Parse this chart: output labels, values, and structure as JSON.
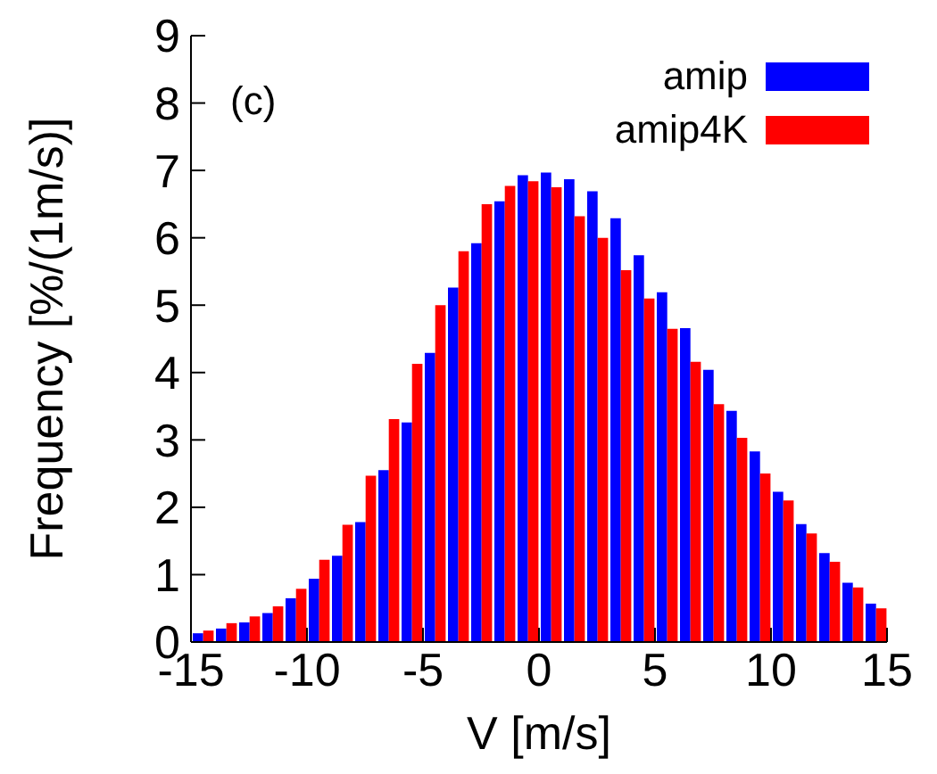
{
  "chart_data": {
    "type": "histogram",
    "xlabel": "V  [m/s]",
    "ylabel": "Frequency  [%/(1m/s)]",
    "annotations": [
      "(c)"
    ],
    "bins": [
      -15,
      -14,
      -13,
      -12,
      -11,
      -10,
      -9,
      -8,
      -7,
      -6,
      -5,
      -4,
      -3,
      -2,
      -1,
      0,
      1,
      2,
      3,
      4,
      5,
      6,
      7,
      8,
      9,
      10,
      11,
      12,
      13,
      14,
      15
    ],
    "series": [
      {
        "name": "amip",
        "color": "#0000ff",
        "values": [
          0.13,
          0.2,
          0.29,
          0.43,
          0.65,
          0.94,
          1.28,
          1.78,
          2.55,
          3.26,
          4.29,
          5.26,
          5.92,
          6.54,
          6.93,
          6.97,
          6.87,
          6.69,
          6.29,
          5.74,
          5.19,
          4.66,
          4.04,
          3.43,
          2.83,
          2.23,
          1.75,
          1.32,
          0.88,
          0.57
        ]
      },
      {
        "name": "amip4K",
        "color": "#ff0000",
        "values": [
          0.17,
          0.28,
          0.38,
          0.53,
          0.79,
          1.22,
          1.74,
          2.47,
          3.31,
          4.13,
          5.0,
          5.8,
          6.5,
          6.77,
          6.84,
          6.75,
          6.32,
          6.0,
          5.52,
          5.1,
          4.65,
          4.16,
          3.53,
          3.03,
          2.5,
          2.1,
          1.61,
          1.19,
          0.81,
          0.5
        ]
      }
    ],
    "xlim": [
      -15,
      15
    ],
    "xticks": [
      -15,
      -10,
      -5,
      0,
      5,
      10,
      15
    ],
    "ylim": [
      0,
      9
    ],
    "yticks": [
      0,
      1,
      2,
      3,
      4,
      5,
      6,
      7,
      8,
      9
    ],
    "legend": "top right"
  }
}
